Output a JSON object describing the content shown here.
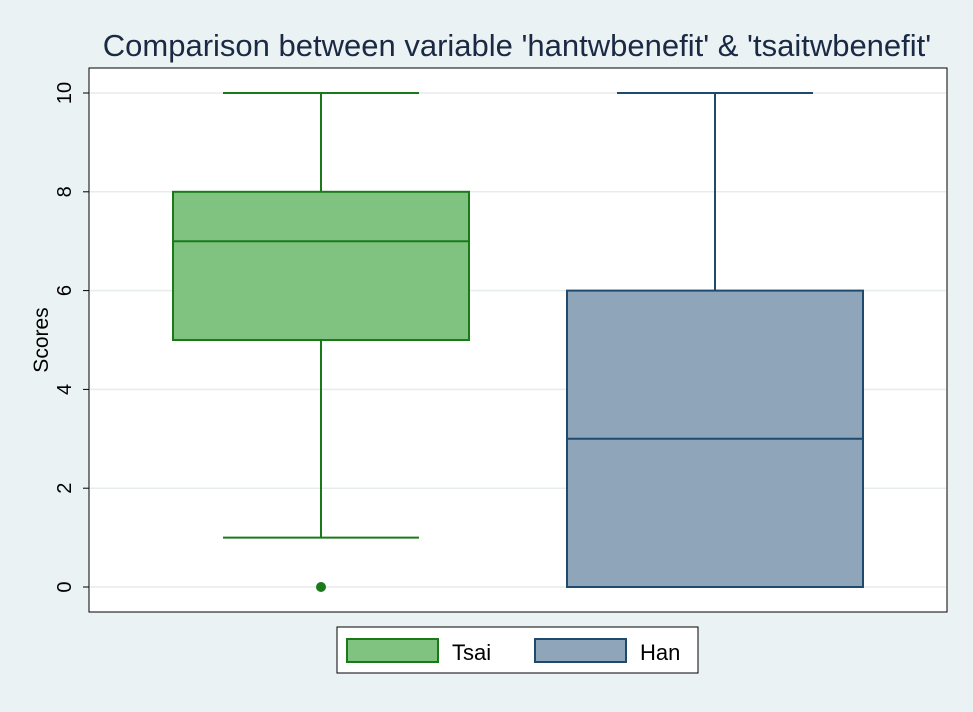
{
  "chart_data": {
    "type": "box",
    "title": "Comparison between variable 'hantwbenefit' & 'tsaitwbenefit'",
    "ylabel": "Scores",
    "xlabel": "",
    "ylim": [
      -0.5,
      10.5
    ],
    "yticks": [
      0,
      2,
      4,
      6,
      8,
      10
    ],
    "grid": true,
    "legend_position": "bottom",
    "series": [
      {
        "name": "Tsai",
        "color": "#80c280",
        "edge_color": "#1a7a1a",
        "whisker_low": 1,
        "q1": 5,
        "median": 7,
        "q3": 8,
        "whisker_high": 10,
        "outliers": [
          0
        ]
      },
      {
        "name": "Han",
        "color": "#8ea5ba",
        "edge_color": "#1f4a6e",
        "whisker_low": 0,
        "q1": 0,
        "median": 3,
        "q3": 6,
        "whisker_high": 10,
        "outliers": []
      }
    ]
  }
}
